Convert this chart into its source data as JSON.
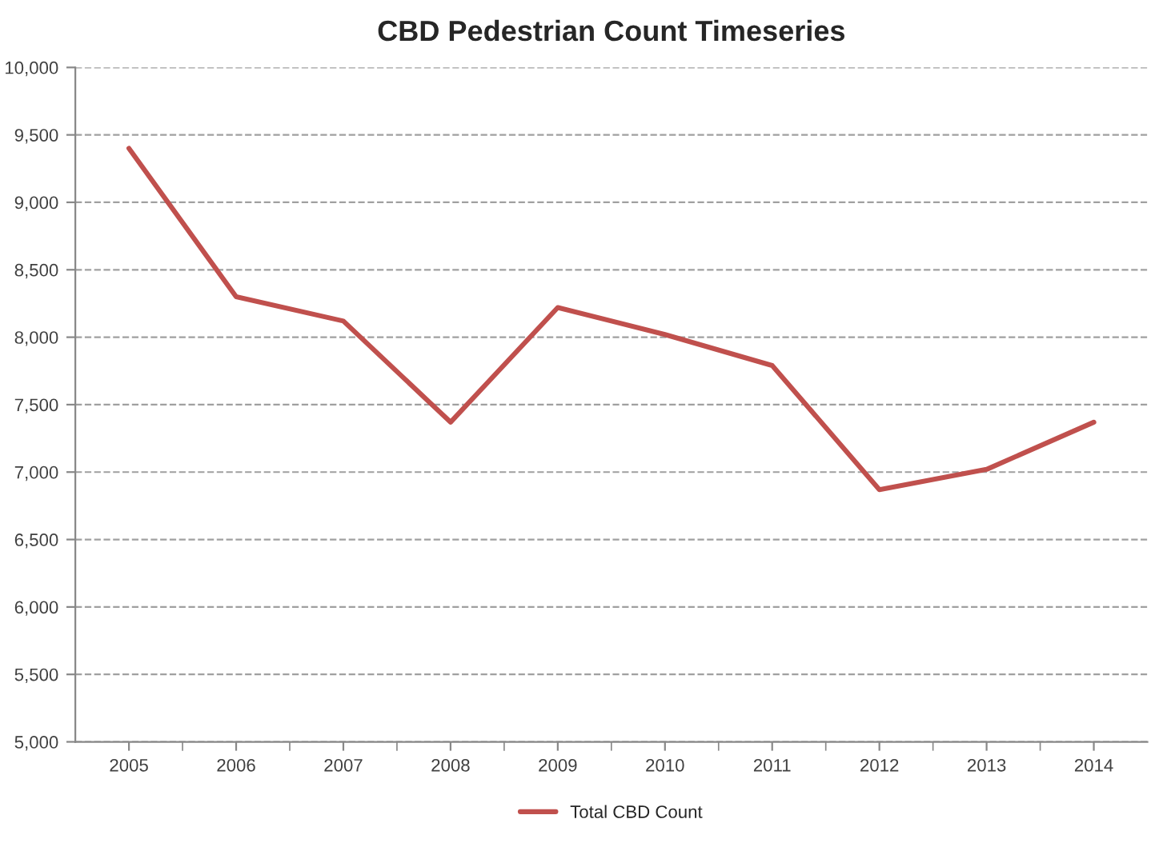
{
  "chart_data": {
    "type": "line",
    "title": "CBD Pedestrian Count Timeseries",
    "categories": [
      "2005",
      "2006",
      "2007",
      "2008",
      "2009",
      "2010",
      "2011",
      "2012",
      "2013",
      "2014"
    ],
    "series": [
      {
        "name": "Total CBD Count",
        "color": "#c0504d",
        "values": [
          9400,
          8300,
          8120,
          7370,
          8220,
          8020,
          7790,
          6870,
          7020,
          7370
        ]
      }
    ],
    "ylim": [
      5000,
      10000
    ],
    "yticks": [
      {
        "value": 5000,
        "label": "5,000"
      },
      {
        "value": 5500,
        "label": "5,500"
      },
      {
        "value": 6000,
        "label": "6,000"
      },
      {
        "value": 6500,
        "label": "6,500"
      },
      {
        "value": 7000,
        "label": "7,000"
      },
      {
        "value": 7500,
        "label": "7,500"
      },
      {
        "value": 8000,
        "label": "8,000"
      },
      {
        "value": 8500,
        "label": "8,500"
      },
      {
        "value": 9000,
        "label": "9,000"
      },
      {
        "value": 9500,
        "label": "9,500"
      },
      {
        "value": 10000,
        "label": "10,000"
      }
    ],
    "grid": "y",
    "legend": "bottom",
    "marker": "none",
    "line_style": "solid"
  }
}
